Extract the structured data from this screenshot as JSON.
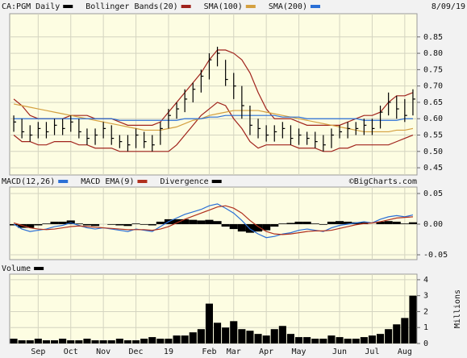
{
  "chart_data": [
    {
      "type": "ohlc",
      "date": "8/09/19",
      "ylim": [
        0.428,
        0.921
      ],
      "yticks": [
        0.45,
        {
          "value": 0.5,
          "label": "0.50"
        },
        0.55,
        {
          "value": 0.6,
          "label": "0.60"
        },
        0.65,
        {
          "value": 0.7,
          "label": "0.70"
        },
        0.75,
        {
          "value": 0.8,
          "label": "0.80"
        },
        0.85
      ],
      "grid": true,
      "bars": {
        "name": "CA:PGM Daily",
        "color": "#000000",
        "high": [
          0.61,
          0.6,
          0.58,
          0.59,
          0.59,
          0.6,
          0.6,
          0.61,
          0.6,
          0.57,
          0.57,
          0.59,
          0.58,
          0.55,
          0.55,
          0.57,
          0.56,
          0.55,
          0.59,
          0.63,
          0.65,
          0.69,
          0.71,
          0.75,
          0.8,
          0.82,
          0.78,
          0.74,
          0.7,
          0.64,
          0.6,
          0.58,
          0.58,
          0.59,
          0.58,
          0.57,
          0.56,
          0.56,
          0.55,
          0.57,
          0.58,
          0.59,
          0.59,
          0.6,
          0.6,
          0.64,
          0.68,
          0.67,
          0.66,
          0.69
        ],
        "low": [
          0.56,
          0.54,
          0.53,
          0.54,
          0.54,
          0.55,
          0.55,
          0.56,
          0.54,
          0.52,
          0.52,
          0.54,
          0.52,
          0.51,
          0.5,
          0.51,
          0.51,
          0.5,
          0.52,
          0.57,
          0.6,
          0.62,
          0.65,
          0.68,
          0.72,
          0.76,
          0.7,
          0.66,
          0.6,
          0.55,
          0.54,
          0.53,
          0.53,
          0.54,
          0.52,
          0.52,
          0.52,
          0.51,
          0.5,
          0.51,
          0.54,
          0.54,
          0.55,
          0.55,
          0.55,
          0.57,
          0.61,
          0.6,
          0.59,
          0.61
        ],
        "close": [
          0.59,
          0.56,
          0.55,
          0.57,
          0.56,
          0.58,
          0.57,
          0.59,
          0.56,
          0.54,
          0.55,
          0.57,
          0.54,
          0.53,
          0.52,
          0.55,
          0.53,
          0.52,
          0.57,
          0.61,
          0.63,
          0.66,
          0.69,
          0.73,
          0.78,
          0.8,
          0.72,
          0.7,
          0.64,
          0.58,
          0.57,
          0.55,
          0.56,
          0.57,
          0.54,
          0.55,
          0.54,
          0.53,
          0.52,
          0.55,
          0.56,
          0.57,
          0.57,
          0.58,
          0.57,
          0.62,
          0.65,
          0.63,
          0.61,
          0.66
        ]
      },
      "bands": {
        "name": "Bollinger Bands(20)",
        "color": "#a0231c",
        "upper": [
          0.66,
          0.64,
          0.61,
          0.6,
          0.6,
          0.6,
          0.6,
          0.61,
          0.61,
          0.61,
          0.6,
          0.6,
          0.6,
          0.59,
          0.58,
          0.58,
          0.58,
          0.58,
          0.59,
          0.62,
          0.65,
          0.68,
          0.71,
          0.74,
          0.78,
          0.81,
          0.81,
          0.8,
          0.78,
          0.74,
          0.68,
          0.63,
          0.6,
          0.6,
          0.6,
          0.59,
          0.58,
          0.58,
          0.58,
          0.58,
          0.58,
          0.59,
          0.6,
          0.61,
          0.61,
          0.62,
          0.65,
          0.67,
          0.67,
          0.68
        ],
        "lower": [
          0.55,
          0.53,
          0.53,
          0.52,
          0.52,
          0.53,
          0.53,
          0.53,
          0.52,
          0.52,
          0.51,
          0.51,
          0.51,
          0.5,
          0.5,
          0.5,
          0.5,
          0.5,
          0.5,
          0.5,
          0.52,
          0.55,
          0.58,
          0.61,
          0.63,
          0.65,
          0.64,
          0.6,
          0.57,
          0.53,
          0.51,
          0.52,
          0.52,
          0.52,
          0.52,
          0.51,
          0.51,
          0.51,
          0.5,
          0.5,
          0.51,
          0.51,
          0.52,
          0.52,
          0.52,
          0.52,
          0.52,
          0.53,
          0.54,
          0.55
        ]
      },
      "series": [
        {
          "name": "SMA(100)",
          "color": "#d4a040",
          "values": [
            0.645,
            0.64,
            0.635,
            0.63,
            0.625,
            0.62,
            0.615,
            0.61,
            0.605,
            0.6,
            0.595,
            0.59,
            0.585,
            0.58,
            0.575,
            0.57,
            0.565,
            0.565,
            0.565,
            0.57,
            0.575,
            0.585,
            0.595,
            0.6,
            0.61,
            0.615,
            0.62,
            0.625,
            0.625,
            0.625,
            0.625,
            0.62,
            0.615,
            0.61,
            0.605,
            0.6,
            0.595,
            0.59,
            0.585,
            0.58,
            0.575,
            0.57,
            0.565,
            0.56,
            0.56,
            0.56,
            0.56,
            0.565,
            0.565,
            0.57
          ]
        },
        {
          "name": "SMA(200)",
          "color": "#2a6fd6",
          "values": [
            0.6,
            0.6,
            0.6,
            0.6,
            0.6,
            0.6,
            0.6,
            0.6,
            0.6,
            0.6,
            0.6,
            0.6,
            0.6,
            0.595,
            0.595,
            0.595,
            0.595,
            0.595,
            0.595,
            0.595,
            0.595,
            0.6,
            0.6,
            0.6,
            0.605,
            0.605,
            0.61,
            0.61,
            0.61,
            0.61,
            0.61,
            0.61,
            0.61,
            0.605,
            0.605,
            0.605,
            0.6,
            0.6,
            0.6,
            0.6,
            0.6,
            0.6,
            0.6,
            0.595,
            0.595,
            0.595,
            0.595,
            0.595,
            0.6,
            0.6
          ]
        }
      ]
    },
    {
      "type": "line",
      "credit": "©BigCharts.com",
      "ylim": [
        -0.0579,
        0.0605
      ],
      "yticks": [
        0.05,
        {
          "value": 0,
          "label": "0.00"
        },
        -0.05
      ],
      "grid": true,
      "series": [
        {
          "name": "MACD(12,26)",
          "color": "#2a6fd6",
          "values": [
            0.0,
            -0.008,
            -0.012,
            -0.01,
            -0.008,
            -0.004,
            -0.002,
            0.002,
            -0.002,
            -0.006,
            -0.008,
            -0.006,
            -0.008,
            -0.01,
            -0.012,
            -0.008,
            -0.01,
            -0.012,
            -0.004,
            0.004,
            0.01,
            0.016,
            0.02,
            0.024,
            0.03,
            0.033,
            0.026,
            0.018,
            0.006,
            -0.008,
            -0.016,
            -0.022,
            -0.02,
            -0.016,
            -0.014,
            -0.01,
            -0.008,
            -0.01,
            -0.012,
            -0.006,
            -0.002,
            0.0,
            0.002,
            0.004,
            0.002,
            0.008,
            0.012,
            0.014,
            0.012,
            0.015
          ]
        },
        {
          "name": "MACD EMA(9)",
          "color": "#b0301e",
          "values": [
            0.002,
            -0.002,
            -0.006,
            -0.008,
            -0.009,
            -0.008,
            -0.006,
            -0.004,
            -0.003,
            -0.004,
            -0.005,
            -0.006,
            -0.007,
            -0.008,
            -0.009,
            -0.009,
            -0.009,
            -0.01,
            -0.008,
            -0.004,
            0.002,
            0.008,
            0.013,
            0.018,
            0.023,
            0.028,
            0.03,
            0.026,
            0.018,
            0.006,
            -0.004,
            -0.012,
            -0.016,
            -0.017,
            -0.016,
            -0.014,
            -0.012,
            -0.011,
            -0.011,
            -0.01,
            -0.007,
            -0.004,
            -0.001,
            0.001,
            0.002,
            0.004,
            0.007,
            0.01,
            0.011,
            0.012
          ]
        },
        {
          "name": "Divergence",
          "color": "#000000",
          "type": "bar",
          "values": [
            -0.002,
            -0.006,
            -0.006,
            -0.002,
            0.001,
            0.004,
            0.004,
            0.006,
            0.001,
            -0.002,
            -0.003,
            0.0,
            -0.001,
            -0.002,
            -0.003,
            0.001,
            -0.001,
            -0.002,
            0.004,
            0.008,
            0.008,
            0.008,
            0.007,
            0.006,
            0.007,
            0.005,
            -0.004,
            -0.008,
            -0.012,
            -0.014,
            -0.012,
            -0.01,
            -0.004,
            0.001,
            0.002,
            0.004,
            0.004,
            0.001,
            -0.001,
            0.004,
            0.005,
            0.004,
            0.003,
            0.003,
            0.0,
            0.004,
            0.005,
            0.004,
            0.001,
            0.003
          ]
        }
      ]
    },
    {
      "type": "bar",
      "y_label": "Millions",
      "ylim": [
        0,
        4.35
      ],
      "yticks": [
        0,
        1,
        2,
        3,
        4
      ],
      "grid": true,
      "categories": [
        null,
        null,
        null,
        "Sep",
        null,
        null,
        null,
        "Oct",
        null,
        null,
        null,
        "Nov",
        null,
        null,
        null,
        "Dec",
        null,
        null,
        null,
        "19",
        null,
        null,
        null,
        null,
        "Feb",
        null,
        null,
        "Mar",
        null,
        null,
        null,
        "Apr",
        null,
        null,
        null,
        "May",
        null,
        null,
        null,
        null,
        "Jun",
        null,
        null,
        null,
        "Jul",
        null,
        null,
        null,
        "Aug",
        null
      ],
      "series": [
        {
          "name": "Volume",
          "color": "#000000",
          "values": [
            0.3,
            0.2,
            0.2,
            0.3,
            0.2,
            0.2,
            0.3,
            0.2,
            0.2,
            0.3,
            0.2,
            0.2,
            0.2,
            0.3,
            0.2,
            0.2,
            0.3,
            0.4,
            0.3,
            0.3,
            0.5,
            0.5,
            0.7,
            0.9,
            2.5,
            1.3,
            1.0,
            1.4,
            0.9,
            0.8,
            0.6,
            0.5,
            0.9,
            1.1,
            0.6,
            0.4,
            0.4,
            0.3,
            0.3,
            0.5,
            0.4,
            0.3,
            0.3,
            0.4,
            0.5,
            0.6,
            0.9,
            1.2,
            1.6,
            3.0
          ]
        }
      ]
    }
  ]
}
